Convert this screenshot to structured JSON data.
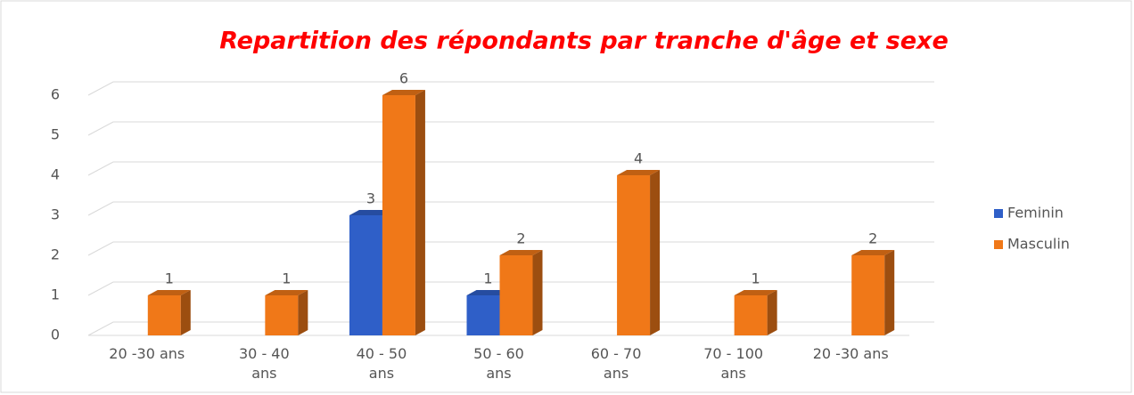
{
  "chart_data": {
    "type": "bar3d",
    "title": "Repartition des répondants par tranche d'âge et sexe",
    "categories": [
      "20 -30 ans",
      "30 - 40 ans",
      "40 - 50 ans",
      "50 - 60 ans",
      "60 - 70 ans",
      "70 - 100 ans",
      "20 -30 ans"
    ],
    "series": [
      {
        "name": "Feminin",
        "color": "#2f5fc8",
        "values": [
          null,
          null,
          3,
          1,
          null,
          null,
          null
        ]
      },
      {
        "name": "Masculin",
        "color": "#f07818",
        "values": [
          1,
          1,
          6,
          2,
          4,
          1,
          2
        ]
      }
    ],
    "ylim": [
      0,
      6
    ],
    "yticks": [
      0,
      1,
      2,
      3,
      4,
      5,
      6
    ],
    "grid": true,
    "legend": "right"
  }
}
